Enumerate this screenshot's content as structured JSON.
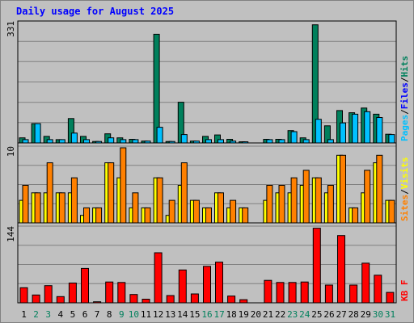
{
  "chart_data": {
    "type": "bar",
    "title": "Daily usage for August 2025",
    "categories": [
      "1",
      "2",
      "3",
      "4",
      "5",
      "6",
      "7",
      "8",
      "9",
      "10",
      "11",
      "12",
      "13",
      "14",
      "15",
      "16",
      "17",
      "18",
      "19",
      "20",
      "21",
      "22",
      "23",
      "24",
      "25",
      "26",
      "27",
      "28",
      "29",
      "30",
      "31"
    ],
    "weekend_days": [
      "2",
      "3",
      "9",
      "10",
      "16",
      "17",
      "23",
      "24",
      "30",
      "31"
    ],
    "panels": [
      {
        "id": "hits",
        "max_label": "331",
        "ylim": [
          0,
          331
        ],
        "legend": [
          {
            "label": "Pages",
            "color": "#00c0ff"
          },
          {
            "label": "Files",
            "color": "#0000ff"
          },
          {
            "label": "Hits",
            "color": "#00805c"
          }
        ],
        "series": [
          {
            "name": "Hits",
            "color": "#00805c",
            "values": [
              14,
              53,
              18,
              9,
              67,
              18,
              4,
              25,
              14,
              10,
              5,
              299,
              4,
              112,
              5,
              18,
              22,
              10,
              3,
              0,
              10,
              10,
              34,
              14,
              325,
              47,
              89,
              83,
              96,
              79,
              24
            ]
          },
          {
            "name": "Pages",
            "color": "#00c0ff",
            "values": [
              9,
              53,
              9,
              9,
              27,
              9,
              4,
              14,
              9,
              9,
              5,
              43,
              4,
              23,
              5,
              9,
              9,
              5,
              3,
              0,
              9,
              9,
              31,
              9,
              65,
              9,
              55,
              79,
              86,
              70,
              23
            ]
          }
        ]
      },
      {
        "id": "visits",
        "max_label": "10",
        "ylim": [
          0,
          10
        ],
        "legend": [
          {
            "label": "Sites",
            "color": "#ff8000"
          },
          {
            "label": "Visits",
            "color": "#ffff00"
          }
        ],
        "series": [
          {
            "name": "Visits",
            "color": "#ffff00",
            "values": [
              3,
              4,
              4,
              4,
              4,
              1,
              2,
              8,
              6,
              2,
              2,
              6,
              1,
              5,
              3,
              2,
              4,
              2,
              2,
              0,
              3,
              4,
              4,
              5,
              6,
              4,
              9,
              2,
              4,
              8,
              3
            ]
          },
          {
            "name": "Sites",
            "color": "#ff8000",
            "values": [
              5,
              4,
              8,
              4,
              6,
              2,
              2,
              8,
              10,
              4,
              2,
              6,
              3,
              8,
              3,
              2,
              4,
              3,
              2,
              0,
              5,
              5,
              6,
              7,
              6,
              5,
              9,
              2,
              7,
              9,
              3
            ]
          }
        ]
      },
      {
        "id": "kbytes",
        "max_label": "144",
        "ylim": [
          0,
          144
        ],
        "legend": [
          {
            "label": "KB F",
            "color": "#ff0000"
          }
        ],
        "series": [
          {
            "name": "KB F",
            "color": "#ff0000",
            "values": [
              29,
              15,
              33,
              12,
              38,
              66,
              2,
              40,
              39,
              16,
              7,
              96,
              14,
              63,
              17,
              70,
              78,
              13,
              6,
              0,
              43,
              39,
              39,
              40,
              143,
              34,
              129,
              34,
              76,
              53,
              20
            ]
          }
        ]
      }
    ]
  }
}
